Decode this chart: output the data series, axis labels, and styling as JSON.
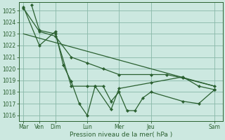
{
  "bg_color": "#cce8e0",
  "grid_color": "#88b8a8",
  "line_color": "#2a6030",
  "marker_color": "#2a6030",
  "xlabel": "Pression niveau de la mer( hPa )",
  "xlabel_color": "#2a6030",
  "ylim": [
    1015.5,
    1025.7
  ],
  "yticks": [
    1016,
    1017,
    1018,
    1019,
    1020,
    1021,
    1022,
    1023,
    1024,
    1025
  ],
  "day_labels": [
    "Mar",
    "Ven",
    "Dim",
    "Lun",
    "Mer",
    "Jeu",
    "Sam"
  ],
  "day_positions": [
    0,
    14,
    28,
    56,
    84,
    112,
    168
  ],
  "xlim": [
    -4,
    175
  ],
  "lines": [
    {
      "x": [
        0,
        14,
        28,
        35,
        42,
        49,
        56,
        63,
        70,
        77,
        84,
        91,
        98,
        105,
        112,
        140,
        154,
        168
      ],
      "y": [
        1025.3,
        1022.0,
        1023.2,
        1020.3,
        1018.9,
        1017.0,
        1016.0,
        1018.5,
        1018.5,
        1017.2,
        1018.0,
        1016.4,
        1016.4,
        1017.5,
        1018.0,
        1017.2,
        1017.0,
        1018.2
      ]
    },
    {
      "x": [
        7,
        14,
        28,
        42,
        56,
        63,
        77,
        84,
        112,
        140,
        154,
        168
      ],
      "y": [
        1025.5,
        1023.3,
        1023.0,
        1018.5,
        1018.5,
        1018.5,
        1016.5,
        1018.3,
        1018.8,
        1019.3,
        1018.5,
        1018.2
      ]
    },
    {
      "x": [
        0,
        14,
        28,
        42,
        56,
        70,
        84,
        112,
        126,
        140,
        168
      ],
      "y": [
        1025.2,
        1023.2,
        1022.8,
        1021.0,
        1020.5,
        1020.0,
        1019.5,
        1019.5,
        1019.5,
        1019.2,
        1018.5
      ]
    },
    {
      "x": [
        0,
        168
      ],
      "y": [
        1023.0,
        1018.5
      ]
    }
  ]
}
